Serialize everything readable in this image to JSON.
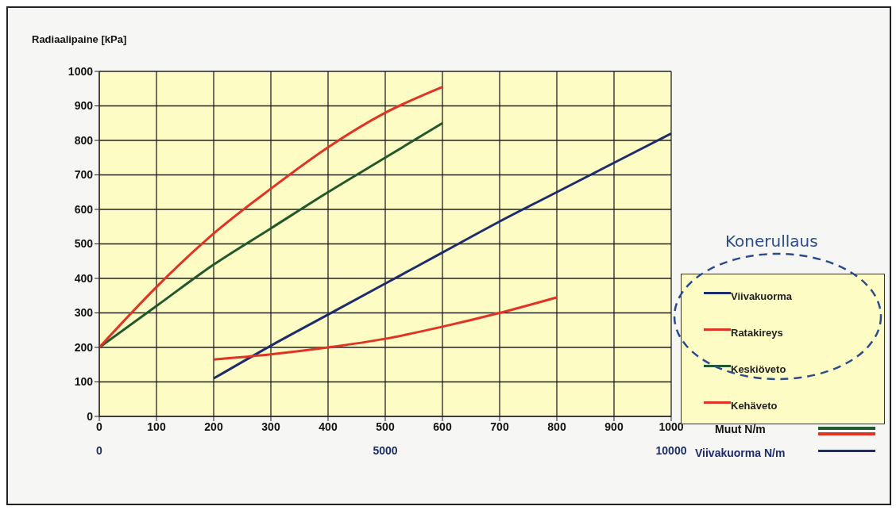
{
  "chart_data": {
    "type": "line",
    "ylabel": "Radiaalipaine [kPa]",
    "xlabel": "Muut N/m",
    "x2label": "Viivakuorma N/m",
    "legend_title": "Konerullaus",
    "xlim": [
      0,
      1000
    ],
    "xticks": [
      0,
      100,
      200,
      300,
      400,
      500,
      600,
      700,
      800,
      900,
      1000
    ],
    "x2lim": [
      0,
      10000
    ],
    "x2ticks": [
      0,
      5000,
      10000
    ],
    "ylim": [
      0,
      1000
    ],
    "yticks": [
      0,
      100,
      200,
      300,
      400,
      500,
      600,
      700,
      800,
      900,
      1000
    ],
    "grid": true,
    "legend": "right",
    "marker": "none",
    "line_style": "solid",
    "series": [
      {
        "name": "Viivakuorma",
        "color": "#1c2c6c",
        "axis": "x2",
        "x": [
          2000,
          3000,
          4000,
          5000,
          6000,
          7000,
          8000,
          9000,
          10000
        ],
        "values": [
          110,
          205,
          295,
          385,
          475,
          565,
          650,
          735,
          820
        ]
      },
      {
        "name": "Ratakireys",
        "color": "#e03424",
        "x": [
          200,
          300,
          400,
          500,
          600,
          700,
          800
        ],
        "values": [
          165,
          180,
          200,
          225,
          260,
          300,
          345
        ]
      },
      {
        "name": "Keskiöveto",
        "color": "#22582c",
        "x": [
          0,
          100,
          200,
          300,
          400,
          500,
          600
        ],
        "values": [
          200,
          320,
          440,
          545,
          650,
          750,
          850
        ]
      },
      {
        "name": "Kehäveto",
        "color": "#e03424",
        "x": [
          0,
          100,
          200,
          300,
          400,
          500,
          600
        ],
        "values": [
          200,
          375,
          530,
          660,
          780,
          880,
          955
        ]
      }
    ]
  }
}
